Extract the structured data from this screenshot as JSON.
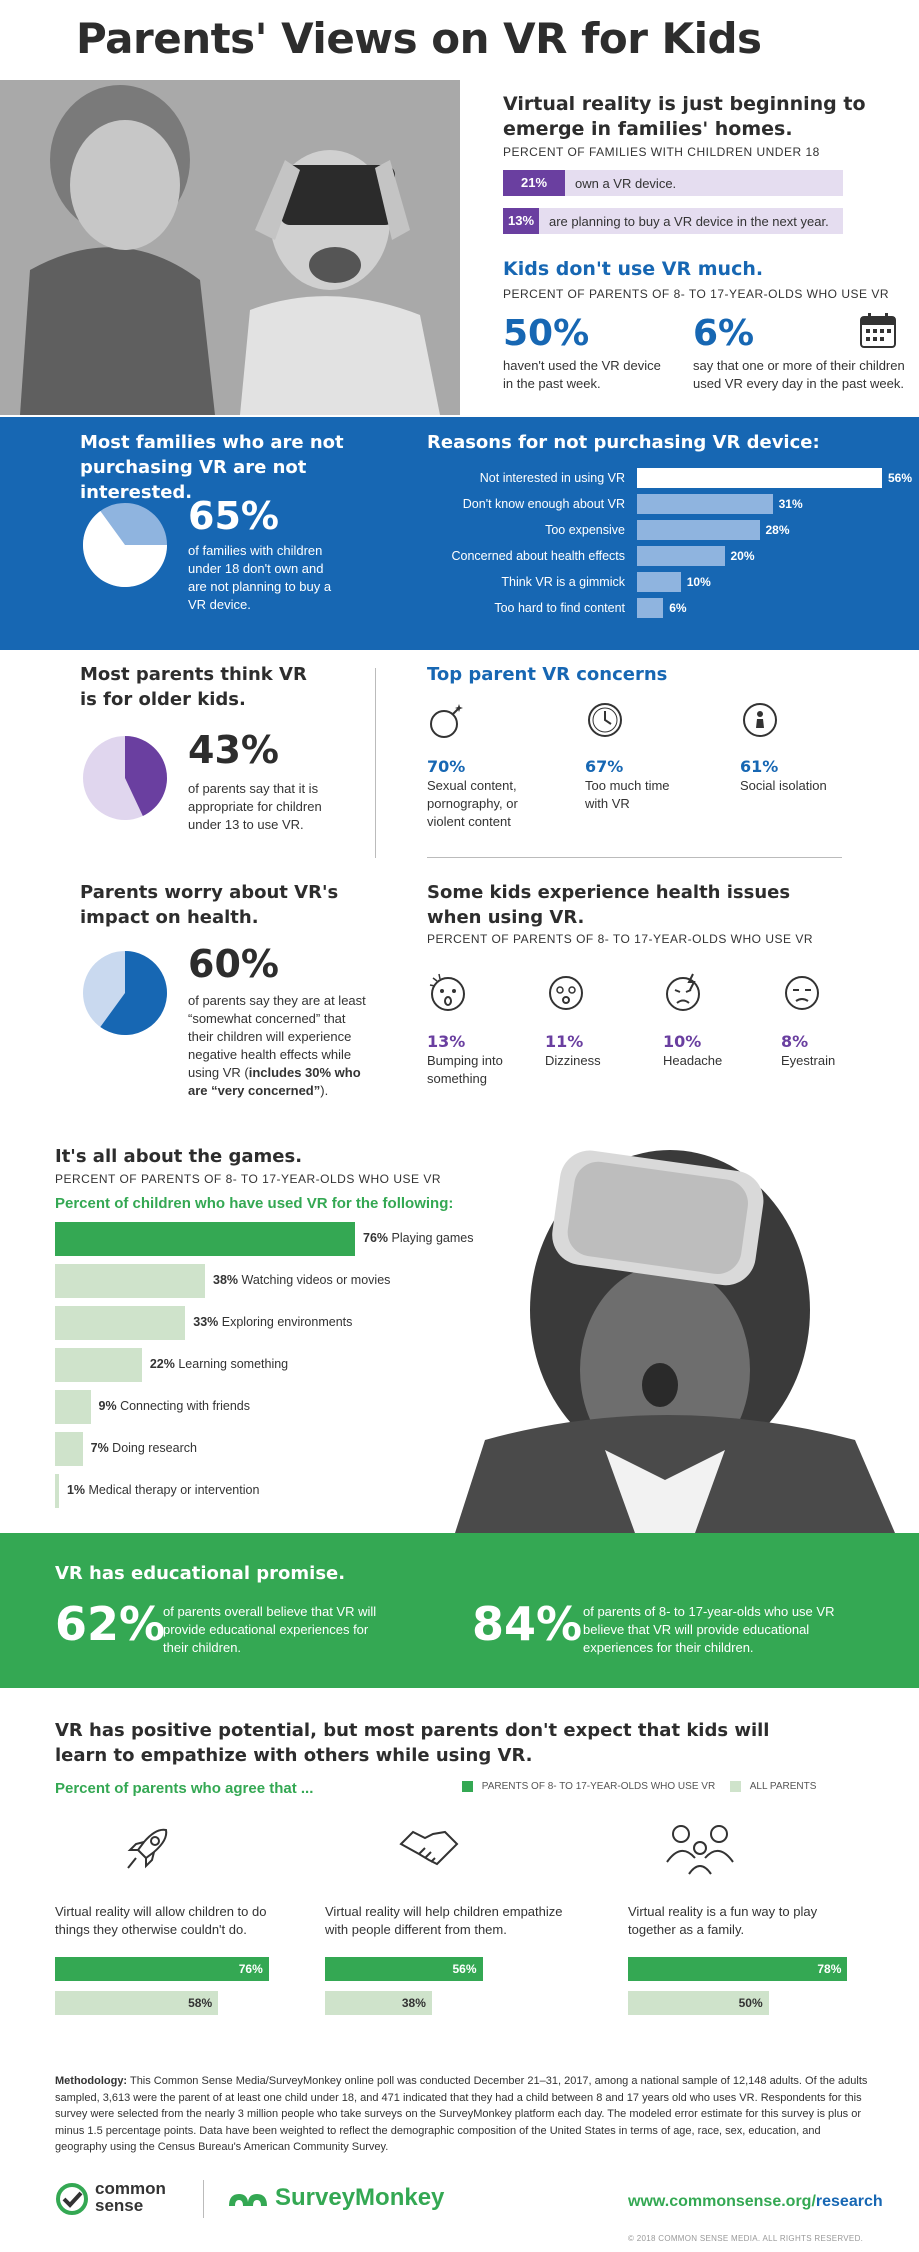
{
  "title": "Parents' Views on VR for Kids",
  "section1": {
    "heading": "Virtual reality is just beginning to emerge in families' homes.",
    "subhead": "PERCENT OF FAMILIES WITH CHILDREN UNDER 18",
    "rows": [
      {
        "value": "21%",
        "label": "own a VR device."
      },
      {
        "value": "13%",
        "label": "are planning to buy a VR device in the next year."
      }
    ],
    "heading2": "Kids don't use VR much.",
    "subhead2": "PERCENT OF PARENTS OF 8- TO 17-YEAR-OLDS WHO USE VR",
    "stat1_value": "50%",
    "stat1_text": "haven't used the VR device in the past week.",
    "stat2_value": "6%",
    "stat2_text": "say that one or more of their children used VR every day in the past week."
  },
  "section2": {
    "heading": "Most families who are not purchasing VR are not interested.",
    "pie_value": "65%",
    "pie_text": "of families with children under 18 don't own and are not planning to buy a VR device.",
    "reasons_heading": "Reasons for not purchasing VR device:"
  },
  "section3": {
    "heading": "Most parents think VR is for older kids.",
    "pie_value": "43%",
    "pie_text": "of parents say that it is appropriate for children under 13 to use VR.",
    "concerns_heading": "Top parent VR concerns",
    "concerns": [
      {
        "value": "70%",
        "label": "Sexual content, pornography, or violent content",
        "icon": "bomb-icon"
      },
      {
        "value": "67%",
        "label": "Too much time with VR",
        "icon": "clock-icon"
      },
      {
        "value": "61%",
        "label": "Social isolation",
        "icon": "person-icon"
      }
    ]
  },
  "section4": {
    "heading": "Parents worry about VR's impact on health.",
    "pie_value": "60%",
    "pie_text_a": "of parents say they are at least “somewhat concerned” that their children will experience negative health effects while using VR (",
    "pie_text_b": "includes 30% who are “very concerned”",
    "pie_text_c": ").",
    "issues_heading": "Some kids experience health issues when using VR.",
    "issues_subhead": "PERCENT OF PARENTS OF 8- TO 17-YEAR-OLDS WHO USE VR",
    "issues": [
      {
        "value": "13%",
        "label": "Bumping into something"
      },
      {
        "value": "11%",
        "label": "Dizziness"
      },
      {
        "value": "10%",
        "label": "Headache"
      },
      {
        "value": "8%",
        "label": "Eyestrain"
      }
    ]
  },
  "section5": {
    "heading": "It's all about the games.",
    "subhead": "PERCENT OF PARENTS OF 8- TO 17-YEAR-OLDS WHO USE VR",
    "green_label": "Percent of children who have used VR for the following:"
  },
  "section6": {
    "heading": "VR has educational promise.",
    "stat1_value": "62%",
    "stat1_text": "of parents overall believe that VR will provide educational experiences for their children.",
    "stat2_value": "84%",
    "stat2_text": "of parents of 8- to 17-year-olds who use VR believe that VR will provide educational experiences for their children."
  },
  "section7": {
    "heading": "VR has positive potential, but most parents don't expect that kids will learn to empathize with others while using VR.",
    "green_label": "Percent of parents who agree that ...",
    "legend": [
      {
        "label": "PARENTS OF 8- TO 17-YEAR-OLDS WHO USE VR",
        "color": "#34a853"
      },
      {
        "label": "ALL PARENTS",
        "color": "#cfe3cb"
      }
    ],
    "items": [
      {
        "icon": "rocket-icon",
        "text": "Virtual reality will allow children to do things they otherwise couldn't do.",
        "v1": "76%",
        "v2": "58%"
      },
      {
        "icon": "handshake-icon",
        "text": "Virtual reality will help children empathize with people different from them.",
        "v1": "56%",
        "v2": "38%"
      },
      {
        "icon": "family-icon",
        "text": "Virtual reality is a fun way to play together as a family.",
        "v1": "78%",
        "v2": "50%"
      }
    ]
  },
  "methodology_label": "Methodology:",
  "methodology": "This Common Sense Media/SurveyMonkey online poll was conducted December 21–31, 2017, among a national sample of 12,148 adults. Of the adults sampled, 3,613 were the parent of at least one child under 18, and 471 indicated that they had a child between 8 and 17 years old who uses VR. Respondents for this survey were selected from the nearly 3 million people who take surveys on the SurveyMonkey platform each day. The modeled error estimate for this survey is plus or minus 1.5 percentage points. Data have been weighted to reflect the demographic composition of the United States in terms of age, race, sex, education, and geography using the Census Bureau's American Community Survey.",
  "footer": {
    "logo1": "common sense",
    "logo2": "SurveyMonkey",
    "url_a": "www.commonsense.org/",
    "url_b": "research",
    "copyright": "© 2018 COMMON SENSE MEDIA. ALL RIGHTS RESERVED."
  },
  "colors": {
    "blue": "#1767b3",
    "purple": "#6a3fa0",
    "green": "#34a853",
    "light_green": "#cfe3cb",
    "light_purple": "#e5ddf0"
  },
  "chart_data": [
    {
      "type": "bar",
      "title": "Reasons for not purchasing VR device:",
      "categories": [
        "Not interested in using VR",
        "Don't know enough about VR",
        "Too expensive",
        "Concerned about health effects",
        "Think VR is a gimmick",
        "Too hard to find content"
      ],
      "values": [
        56,
        31,
        28,
        20,
        10,
        6
      ],
      "labels": [
        "56%",
        "31%",
        "28%",
        "20%",
        "10%",
        "6%"
      ]
    },
    {
      "type": "bar",
      "title": "Percent of children who have used VR for the following:",
      "categories": [
        "Playing games",
        "Watching videos or movies",
        "Exploring environments",
        "Learning something",
        "Connecting with friends",
        "Doing research",
        "Medical therapy or intervention"
      ],
      "values": [
        76,
        38,
        33,
        22,
        9,
        7,
        1
      ],
      "labels": [
        "76%",
        "38%",
        "33%",
        "22%",
        "9%",
        "7%",
        "1%"
      ]
    },
    {
      "type": "pie",
      "values": [
        65,
        35
      ],
      "labels": [
        "65%",
        ""
      ]
    },
    {
      "type": "pie",
      "values": [
        43,
        57
      ],
      "labels": [
        "43%",
        ""
      ]
    },
    {
      "type": "pie",
      "values": [
        60,
        40
      ],
      "labels": [
        "60%",
        ""
      ]
    }
  ]
}
